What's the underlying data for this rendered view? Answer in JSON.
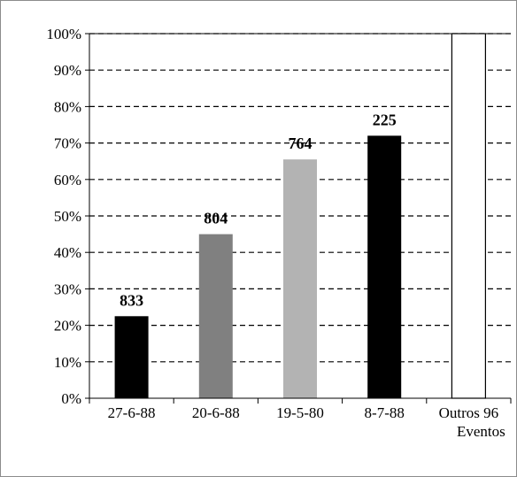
{
  "chart_data": {
    "type": "bar",
    "title": "",
    "xlabel": "",
    "ylabel": "",
    "categories": [
      "27-6-88",
      "20-6-88",
      "19-5-80",
      "8-7-88",
      "Outros 96 Eventos"
    ],
    "category_lines": [
      [
        "27-6-88"
      ],
      [
        "20-6-88"
      ],
      [
        "19-5-80"
      ],
      [
        "8-7-88"
      ],
      [
        "Outros 96",
        "Eventos"
      ]
    ],
    "values": [
      22.5,
      45,
      65.5,
      72,
      100
    ],
    "data_labels": [
      "833",
      "804",
      "764",
      "225",
      ""
    ],
    "bar_colors": [
      "#000000",
      "#808080",
      "#b3b3b3",
      "#000000",
      "#ffffff"
    ],
    "ylim": [
      0,
      100
    ],
    "yticks": [
      "0%",
      "10%",
      "20%",
      "30%",
      "40%",
      "50%",
      "60%",
      "70%",
      "80%",
      "90%",
      "100%"
    ],
    "grid": true,
    "grid_style": "dashed",
    "legend": "none"
  }
}
